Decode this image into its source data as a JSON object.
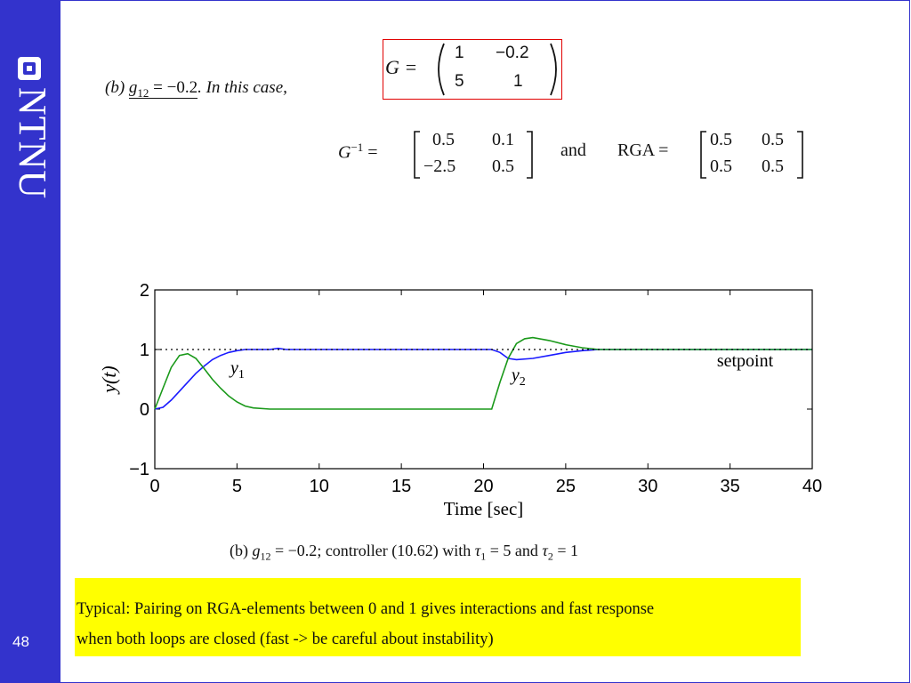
{
  "sidebar": {
    "logo_text": "NTNU",
    "page_number": "48",
    "color": "#3333cc"
  },
  "header": {
    "part_label": "(b)",
    "g_symbol": "g",
    "g_subscript": "12",
    "g_value": " = −0.2",
    "in_this_case": ". In this case,"
  },
  "g_matrix": {
    "label": "G =",
    "rows": [
      [
        "1",
        "−0.2"
      ],
      [
        "5",
        "1"
      ]
    ]
  },
  "inverse_equation": {
    "lhs_base": "G",
    "lhs_sup": "−1",
    "lhs_eq": "=",
    "inverse_rows": [
      [
        "0.5",
        "0.1"
      ],
      [
        "−2.5",
        "0.5"
      ]
    ],
    "conjunction": "and",
    "rga_label": "RGA =",
    "rga_rows": [
      [
        "0.5",
        "0.5"
      ],
      [
        "0.5",
        "0.5"
      ]
    ]
  },
  "caption": {
    "part_label": "(b)",
    "g_symbol": "g",
    "g_subscript": "12",
    "eq": " = −0.2",
    "text_mid": "; controller (10.62) with ",
    "tau": "τ",
    "tau1_sub": "1",
    "tau1_eq": " = 5 and ",
    "tau2_sub": "2",
    "tau2_eq": " = 1"
  },
  "note": {
    "line1": "Typical: Pairing on RGA-elements between 0 and 1 gives interactions and fast response",
    "line2": "when both loops are closed (fast -> be careful about instability)"
  },
  "chart_data": {
    "type": "line",
    "title": "",
    "xlabel": "Time [sec]",
    "ylabel": "y(t)",
    "xlim": [
      0,
      40
    ],
    "ylim": [
      -1,
      2
    ],
    "xticks": [
      0,
      5,
      10,
      15,
      20,
      25,
      30,
      35,
      40
    ],
    "yticks": [
      -1,
      0,
      1,
      2
    ],
    "series": [
      {
        "name": "y1",
        "color": "#1a1aff",
        "x": [
          0,
          0.5,
          1,
          1.5,
          2,
          2.5,
          3,
          3.5,
          4,
          4.5,
          5,
          5.5,
          6,
          7,
          7.5,
          8,
          10,
          15,
          20,
          20.5,
          21,
          21.5,
          22,
          23,
          24,
          25,
          26,
          27,
          30,
          35,
          40
        ],
        "y": [
          0,
          0.03,
          0.15,
          0.3,
          0.45,
          0.6,
          0.72,
          0.83,
          0.9,
          0.95,
          0.98,
          1.0,
          1.0,
          1.0,
          1.02,
          1.0,
          1.0,
          1.0,
          1.0,
          1.0,
          0.95,
          0.85,
          0.83,
          0.85,
          0.9,
          0.95,
          0.98,
          1.0,
          1.0,
          1.0,
          1.0
        ]
      },
      {
        "name": "y2",
        "color": "#1a991a",
        "x": [
          0,
          0.5,
          1,
          1.5,
          2,
          2.5,
          3,
          3.5,
          4,
          4.5,
          5,
          5.5,
          6,
          7,
          8,
          10,
          15,
          20,
          20.5,
          21,
          21.5,
          22,
          22.5,
          23,
          24,
          25,
          26,
          27,
          30,
          35,
          40
        ],
        "y": [
          0,
          0.35,
          0.7,
          0.9,
          0.93,
          0.85,
          0.68,
          0.5,
          0.35,
          0.22,
          0.12,
          0.05,
          0.02,
          0,
          0,
          0,
          0,
          0,
          0,
          0.45,
          0.85,
          1.1,
          1.18,
          1.2,
          1.15,
          1.08,
          1.03,
          1.0,
          1.0,
          1.0,
          1.0
        ]
      },
      {
        "name": "setpoint",
        "color": "#000000",
        "style": "dotted",
        "x": [
          0,
          40
        ],
        "y": [
          1,
          1
        ]
      }
    ],
    "annotations": [
      {
        "text": "y",
        "sub": "1",
        "x": 4.6,
        "y": 0.6
      },
      {
        "text": "y",
        "sub": "2",
        "x": 21.7,
        "y": 0.48
      },
      {
        "text": "setpoint",
        "x": 34.2,
        "y": 0.72
      }
    ]
  }
}
